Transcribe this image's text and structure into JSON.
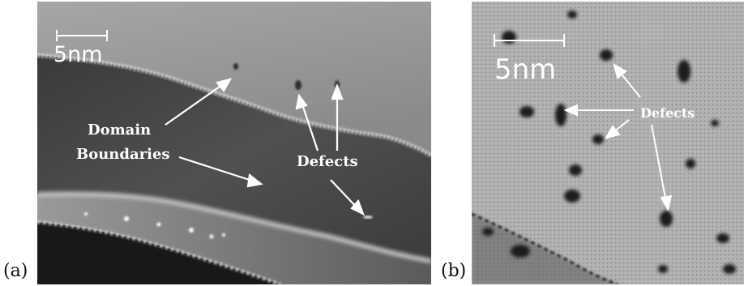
{
  "panel_a": {
    "label": "(a)",
    "scale_text": "5nm",
    "domain_line1": "Domain",
    "domain_line2": "Boundaries",
    "defects_label": "Defects"
  },
  "panel_b": {
    "label": "(b)",
    "scale_text": "5nm",
    "defects_label": "Defects"
  },
  "colors": {
    "annotation": "#ffffff",
    "figure_label": "#111111",
    "background": "#ffffff"
  }
}
